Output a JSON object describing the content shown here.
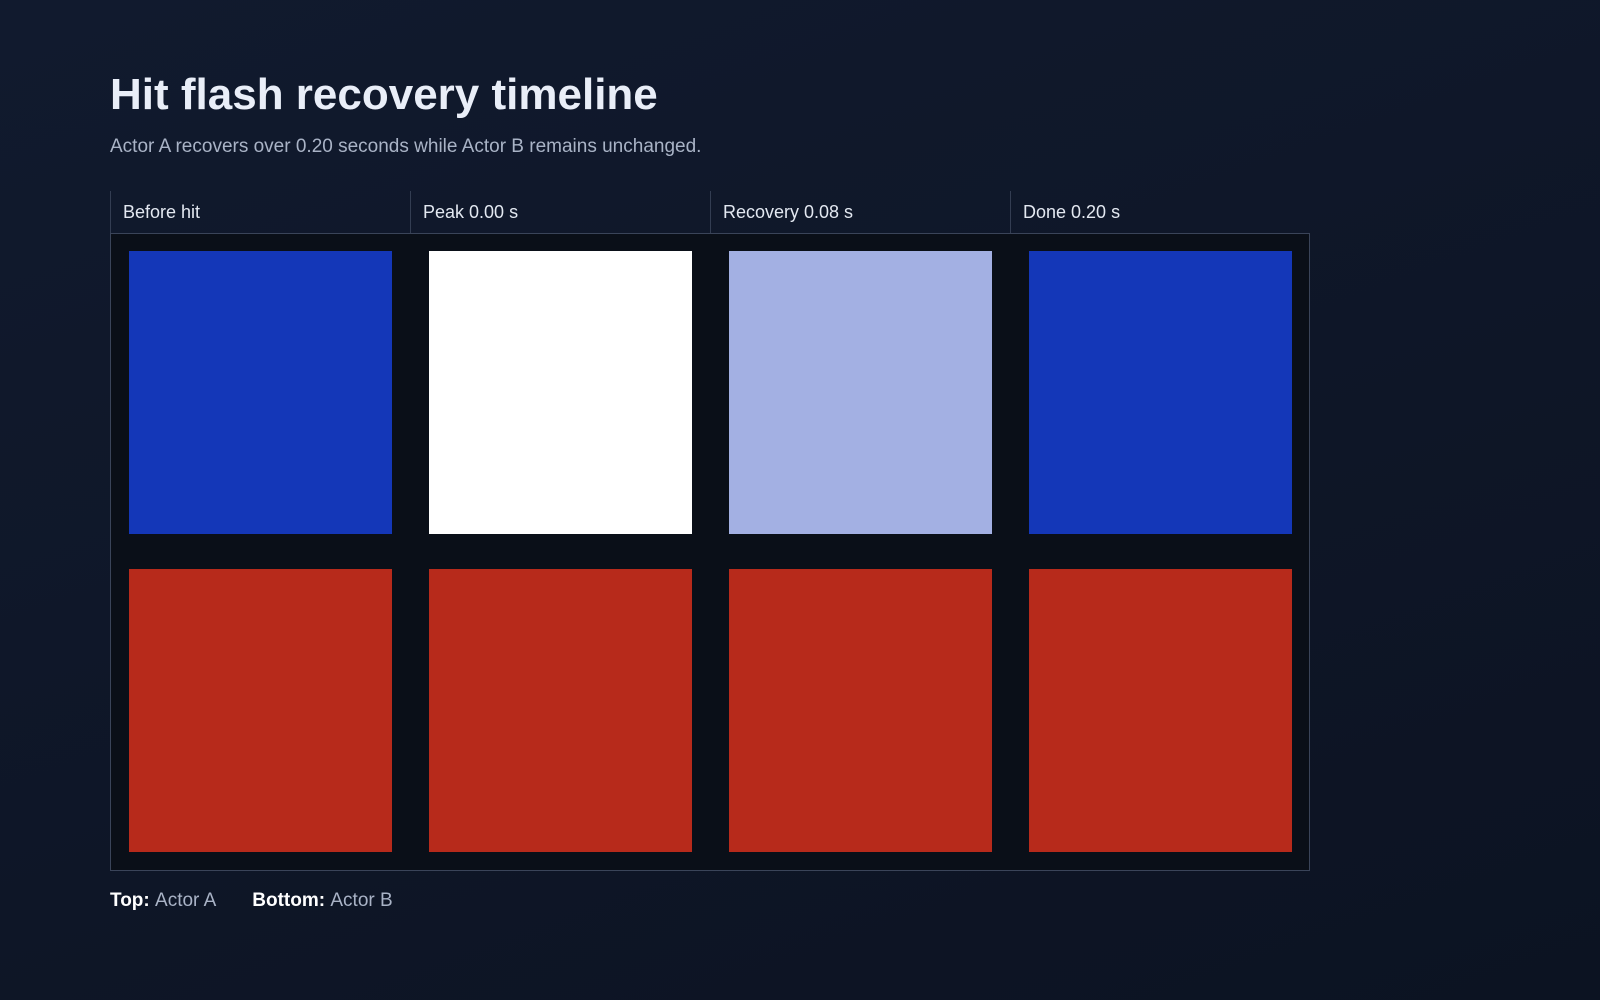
{
  "header": {
    "title": "Hit flash recovery timeline",
    "subtitle": "Actor A recovers over 0.20 seconds while Actor B remains unchanged."
  },
  "frames": [
    {
      "label": "Before hit",
      "actor_a_color": "#1437b8",
      "actor_b_color": "#b72a1b"
    },
    {
      "label": "Peak 0.00 s",
      "actor_a_color": "#ffffff",
      "actor_b_color": "#b72a1b"
    },
    {
      "label": "Recovery 0.08 s",
      "actor_a_color": "#a3b0e3",
      "actor_b_color": "#b72a1b"
    },
    {
      "label": "Done 0.20 s",
      "actor_a_color": "#1437b8",
      "actor_b_color": "#b72a1b"
    }
  ],
  "legend": [
    {
      "key": "Top:",
      "value": "Actor A"
    },
    {
      "key": "Bottom:",
      "value": "Actor B"
    }
  ]
}
